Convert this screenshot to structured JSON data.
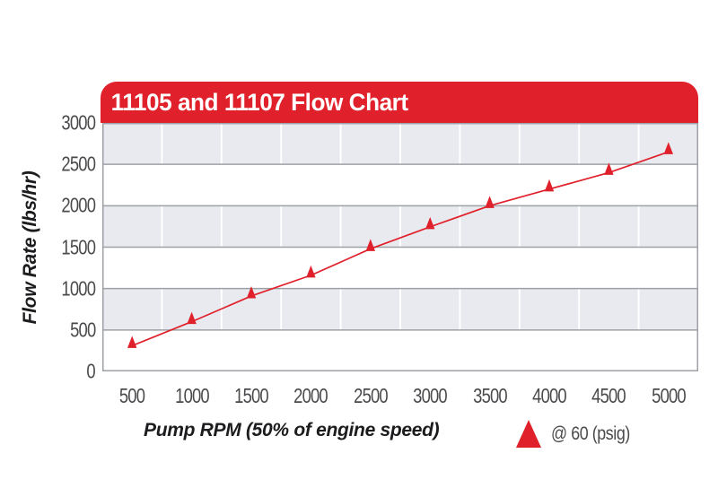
{
  "chart": {
    "title": "11105 and 11107 Flow Chart",
    "xlabel": "Pump RPM (50% of engine speed)",
    "ylabel": "Flow Rate (lbs/hr)"
  },
  "legend": {
    "label": "@ 60 (psig)",
    "marker": "red-filled-triangle"
  },
  "chart_data": {
    "type": "line",
    "title": "11105 and 11107 Flow Chart",
    "xlabel": "Pump RPM (50% of engine speed)",
    "ylabel": "Flow Rate (lbs/hr)",
    "x": [
      500,
      1000,
      1500,
      2000,
      2500,
      3000,
      3500,
      4000,
      4500,
      5000
    ],
    "series": [
      {
        "name": "@ 60 (psig)",
        "marker": "filled-triangle",
        "color": "#E0202A",
        "values": [
          310,
          600,
          910,
          1160,
          1480,
          1745,
          2000,
          2200,
          2400,
          2650
        ]
      }
    ],
    "ylim": [
      0,
      3000
    ],
    "yticks": [
      0,
      500,
      1000,
      1500,
      2000,
      2500,
      3000
    ],
    "xticks": [
      500,
      1000,
      1500,
      2000,
      2500,
      3000,
      3500,
      4000,
      4500,
      5000
    ],
    "grid": {
      "horizontal_lines": true,
      "vertical_column_separators": "white lines between category columns",
      "alternating_row_bands": "gray band every other 500-unit row"
    },
    "legend_position": "below-right"
  },
  "colors": {
    "banner_red": "#E0202A",
    "line_red": "#E0202A",
    "band_gray": "#E9EAEF",
    "gridline_gray": "#9DA0A4",
    "tick_text": "#4A4A4D",
    "axis_title_text": "#1C1C1E",
    "banner_text": "#FFFFFF",
    "background": "#FFFFFF"
  }
}
